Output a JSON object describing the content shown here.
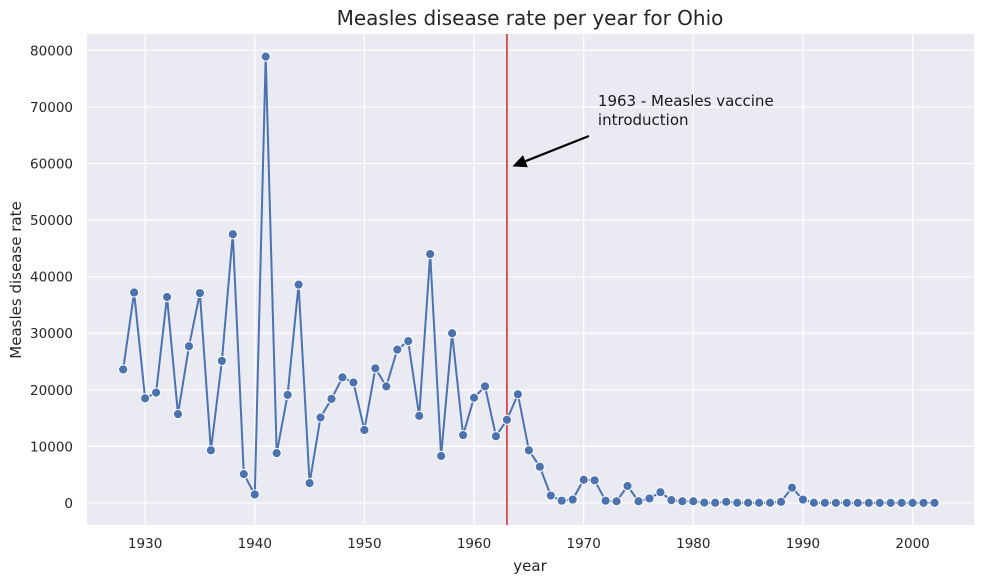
{
  "chart_data": {
    "type": "line",
    "title": "Measles disease rate per year for Ohio",
    "xlabel": "year",
    "ylabel": "Measles disease rate",
    "xlim": [
      1924.7,
      2005.6
    ],
    "ylim": [
      -3900,
      82900
    ],
    "xticks": [
      1930,
      1940,
      1950,
      1960,
      1970,
      1980,
      1990,
      2000
    ],
    "yticks": [
      0,
      10000,
      20000,
      30000,
      40000,
      50000,
      60000,
      70000,
      80000
    ],
    "grid": true,
    "series": [
      {
        "color": "#4c72b0",
        "marker": "circle",
        "points": [
          {
            "x": 1928,
            "y": 23600
          },
          {
            "x": 1929,
            "y": 37200
          },
          {
            "x": 1930,
            "y": 18500
          },
          {
            "x": 1931,
            "y": 19500
          },
          {
            "x": 1932,
            "y": 36400
          },
          {
            "x": 1933,
            "y": 15700
          },
          {
            "x": 1934,
            "y": 27700
          },
          {
            "x": 1935,
            "y": 37100
          },
          {
            "x": 1936,
            "y": 9300
          },
          {
            "x": 1937,
            "y": 25100
          },
          {
            "x": 1938,
            "y": 47500
          },
          {
            "x": 1939,
            "y": 5100
          },
          {
            "x": 1940,
            "y": 1500
          },
          {
            "x": 1941,
            "y": 78900
          },
          {
            "x": 1942,
            "y": 8800
          },
          {
            "x": 1943,
            "y": 19100
          },
          {
            "x": 1944,
            "y": 38600
          },
          {
            "x": 1945,
            "y": 3500
          },
          {
            "x": 1946,
            "y": 15100
          },
          {
            "x": 1947,
            "y": 18400
          },
          {
            "x": 1948,
            "y": 22200
          },
          {
            "x": 1949,
            "y": 21300
          },
          {
            "x": 1950,
            "y": 12900
          },
          {
            "x": 1951,
            "y": 23800
          },
          {
            "x": 1952,
            "y": 20600
          },
          {
            "x": 1953,
            "y": 27100
          },
          {
            "x": 1954,
            "y": 28600
          },
          {
            "x": 1955,
            "y": 15400
          },
          {
            "x": 1956,
            "y": 44000
          },
          {
            "x": 1957,
            "y": 8300
          },
          {
            "x": 1958,
            "y": 30000
          },
          {
            "x": 1959,
            "y": 12000
          },
          {
            "x": 1960,
            "y": 18600
          },
          {
            "x": 1961,
            "y": 20600
          },
          {
            "x": 1962,
            "y": 11800
          },
          {
            "x": 1963,
            "y": 14700
          },
          {
            "x": 1964,
            "y": 19200
          },
          {
            "x": 1965,
            "y": 9300
          },
          {
            "x": 1966,
            "y": 6400
          },
          {
            "x": 1967,
            "y": 1300
          },
          {
            "x": 1968,
            "y": 400
          },
          {
            "x": 1969,
            "y": 600
          },
          {
            "x": 1970,
            "y": 4100
          },
          {
            "x": 1971,
            "y": 4000
          },
          {
            "x": 1972,
            "y": 400
          },
          {
            "x": 1973,
            "y": 300
          },
          {
            "x": 1974,
            "y": 3000
          },
          {
            "x": 1975,
            "y": 300
          },
          {
            "x": 1976,
            "y": 800
          },
          {
            "x": 1977,
            "y": 1900
          },
          {
            "x": 1978,
            "y": 500
          },
          {
            "x": 1979,
            "y": 300
          },
          {
            "x": 1980,
            "y": 300
          },
          {
            "x": 1981,
            "y": 50
          },
          {
            "x": 1982,
            "y": 30
          },
          {
            "x": 1983,
            "y": 200
          },
          {
            "x": 1984,
            "y": 40
          },
          {
            "x": 1985,
            "y": 40
          },
          {
            "x": 1986,
            "y": 40
          },
          {
            "x": 1987,
            "y": 40
          },
          {
            "x": 1988,
            "y": 200
          },
          {
            "x": 1989,
            "y": 2700
          },
          {
            "x": 1990,
            "y": 600
          },
          {
            "x": 1991,
            "y": 30
          },
          {
            "x": 1992,
            "y": 20
          },
          {
            "x": 1993,
            "y": 10
          },
          {
            "x": 1994,
            "y": 10
          },
          {
            "x": 1995,
            "y": 10
          },
          {
            "x": 1996,
            "y": 10
          },
          {
            "x": 1997,
            "y": 10
          },
          {
            "x": 1998,
            "y": 10
          },
          {
            "x": 1999,
            "y": 10
          },
          {
            "x": 2000,
            "y": 10
          },
          {
            "x": 2001,
            "y": 10
          },
          {
            "x": 2002,
            "y": 10
          }
        ]
      }
    ],
    "vline": {
      "x": 1963,
      "color": "#d62728"
    },
    "annotation": {
      "lines": [
        "1963 - Measles vaccine",
        "introduction"
      ],
      "text_x": 1971.3,
      "text_y": 70000,
      "arrow_to_x": 1963.5,
      "arrow_to_y": 59500
    },
    "colors": {
      "background": "#eaeaf2",
      "grid": "#ffffff"
    }
  }
}
